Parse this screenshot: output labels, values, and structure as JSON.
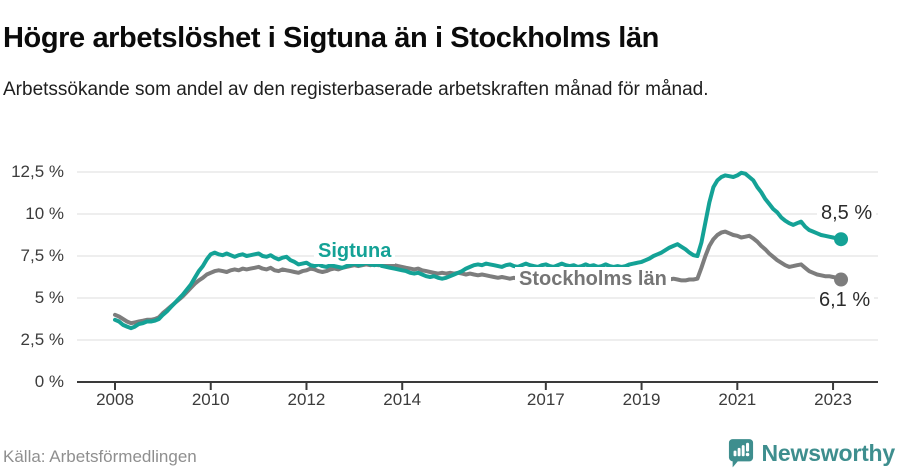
{
  "header": {
    "title": "Högre arbetslöshet i Sigtuna än i Stockholms län",
    "subtitle": "Arbetssökande som andel av den registerbaserade arbetskraften månad för månad."
  },
  "chart_data": {
    "type": "line",
    "title": "Högre arbetslöshet i Sigtuna än i Stockholms län",
    "subtitle": "Arbetssökande som andel av den registerbaserade arbetskraften månad för månad.",
    "unit": "%",
    "grid": true,
    "x_axis": {
      "range": [
        2008,
        2023.3
      ],
      "ticks": [
        {
          "label": "2008",
          "year": 2008
        },
        {
          "label": "2010",
          "year": 2010
        },
        {
          "label": "2012",
          "year": 2012
        },
        {
          "label": "2014",
          "year": 2014
        },
        {
          "label": "2017",
          "year": 2017
        },
        {
          "label": "2019",
          "year": 2019
        },
        {
          "label": "2021",
          "year": 2021
        },
        {
          "label": "2023",
          "year": 2023
        }
      ]
    },
    "y_axis": {
      "range": [
        0,
        12.5
      ],
      "ticks": [
        {
          "label": "0 %",
          "value": 0
        },
        {
          "label": "2,5 %",
          "value": 2.5
        },
        {
          "label": "5 %",
          "value": 5
        },
        {
          "label": "7,5 %",
          "value": 7.5
        },
        {
          "label": "10 %",
          "value": 10
        },
        {
          "label": "12,5 %",
          "value": 12.5
        }
      ]
    },
    "series": [
      {
        "id": "sigtuna",
        "name": "Sigtuna",
        "color": "#14a296",
        "end_label": "8,5 %",
        "end_value": 8.5,
        "start_year": 2008,
        "step_months": 1,
        "values": [
          3.7,
          3.6,
          3.4,
          3.3,
          3.2,
          3.3,
          3.45,
          3.5,
          3.6,
          3.6,
          3.65,
          3.75,
          4.0,
          4.2,
          4.45,
          4.7,
          4.95,
          5.2,
          5.5,
          5.8,
          6.2,
          6.6,
          6.9,
          7.3,
          7.6,
          7.7,
          7.6,
          7.55,
          7.65,
          7.55,
          7.45,
          7.55,
          7.6,
          7.5,
          7.55,
          7.6,
          7.65,
          7.5,
          7.45,
          7.55,
          7.4,
          7.3,
          7.4,
          7.45,
          7.25,
          7.15,
          7.0,
          7.05,
          7.1,
          6.95,
          6.9,
          7.0,
          6.9,
          6.85,
          6.95,
          6.9,
          6.85,
          6.8,
          6.9,
          6.95,
          7.05,
          6.95,
          7.0,
          7.1,
          7.0,
          6.95,
          7.0,
          6.9,
          6.85,
          6.8,
          6.75,
          6.7,
          6.65,
          6.6,
          6.5,
          6.45,
          6.5,
          6.4,
          6.3,
          6.25,
          6.3,
          6.2,
          6.15,
          6.2,
          6.3,
          6.4,
          6.5,
          6.6,
          6.75,
          6.85,
          6.95,
          7.0,
          6.95,
          7.05,
          7.0,
          6.95,
          6.9,
          6.85,
          6.95,
          7.0,
          6.9,
          6.85,
          6.95,
          7.05,
          6.95,
          6.9,
          6.85,
          6.95,
          7.0,
          6.9,
          6.85,
          6.95,
          7.05,
          6.95,
          6.9,
          6.95,
          6.85,
          6.9,
          7.0,
          6.9,
          6.95,
          6.85,
          6.9,
          7.0,
          6.9,
          6.85,
          6.9,
          6.85,
          6.9,
          7.0,
          7.05,
          7.1,
          7.15,
          7.25,
          7.35,
          7.5,
          7.6,
          7.7,
          7.85,
          8.0,
          8.1,
          8.2,
          8.05,
          7.9,
          7.7,
          7.55,
          7.5,
          8.3,
          9.5,
          10.7,
          11.6,
          12.0,
          12.2,
          12.3,
          12.25,
          12.2,
          12.3,
          12.45,
          12.4,
          12.2,
          12.0,
          11.6,
          11.3,
          10.9,
          10.6,
          10.3,
          10.1,
          9.8,
          9.6,
          9.45,
          9.35,
          9.45,
          9.55,
          9.25,
          9.05,
          8.95,
          8.85,
          8.75,
          8.7,
          8.65,
          8.6,
          8.55,
          8.5
        ]
      },
      {
        "id": "stockholms-lan",
        "name": "Stockholms län",
        "color": "#7d7d7d",
        "end_label": "6,1 %",
        "end_value": 6.1,
        "start_year": 2008,
        "step_months": 1,
        "values": [
          4.0,
          3.9,
          3.75,
          3.6,
          3.5,
          3.55,
          3.6,
          3.65,
          3.7,
          3.7,
          3.75,
          3.85,
          4.1,
          4.3,
          4.5,
          4.7,
          4.9,
          5.1,
          5.35,
          5.6,
          5.85,
          6.05,
          6.2,
          6.4,
          6.5,
          6.6,
          6.65,
          6.6,
          6.55,
          6.65,
          6.7,
          6.65,
          6.75,
          6.7,
          6.75,
          6.8,
          6.85,
          6.75,
          6.7,
          6.8,
          6.65,
          6.6,
          6.7,
          6.65,
          6.6,
          6.55,
          6.5,
          6.6,
          6.65,
          6.75,
          6.7,
          6.6,
          6.55,
          6.6,
          6.7,
          6.75,
          6.7,
          6.8,
          6.85,
          6.9,
          6.95,
          6.9,
          6.95,
          7.0,
          6.95,
          7.0,
          6.95,
          7.0,
          6.95,
          6.9,
          6.95,
          6.9,
          6.85,
          6.8,
          6.75,
          6.7,
          6.75,
          6.65,
          6.6,
          6.55,
          6.5,
          6.45,
          6.5,
          6.45,
          6.5,
          6.45,
          6.5,
          6.45,
          6.4,
          6.45,
          6.4,
          6.35,
          6.4,
          6.35,
          6.3,
          6.25,
          6.2,
          6.25,
          6.2,
          6.15,
          6.2,
          6.15,
          6.1,
          6.15,
          6.1,
          6.05,
          6.1,
          6.05,
          6.1,
          6.05,
          6.0,
          6.05,
          6.0,
          5.95,
          6.0,
          5.95,
          6.0,
          5.95,
          6.0,
          5.95,
          6.0,
          5.95,
          6.0,
          6.05,
          6.0,
          5.95,
          6.0,
          6.05,
          6.0,
          6.05,
          6.1,
          6.05,
          6.1,
          6.05,
          6.1,
          6.1,
          6.15,
          6.1,
          6.15,
          6.1,
          6.15,
          6.1,
          6.05,
          6.05,
          6.1,
          6.1,
          6.15,
          6.8,
          7.5,
          8.1,
          8.5,
          8.75,
          8.9,
          8.95,
          8.85,
          8.75,
          8.7,
          8.6,
          8.65,
          8.7,
          8.55,
          8.35,
          8.1,
          7.9,
          7.65,
          7.45,
          7.25,
          7.1,
          6.95,
          6.85,
          6.9,
          6.95,
          7.0,
          6.8,
          6.6,
          6.5,
          6.4,
          6.35,
          6.3,
          6.3,
          6.25,
          6.2,
          6.1
        ]
      }
    ],
    "legend_position": "inline-labels",
    "source": "Källa: Arbetsförmedlingen"
  },
  "footer": {
    "source": "Källa: Arbetsförmedlingen",
    "brand": "Newsworthy"
  },
  "colors": {
    "accent": "#14a296",
    "gray_series": "#7d7d7d",
    "brand": "#3e8e8e",
    "grid": "#e3e3e3",
    "axis": "#3a3a3a",
    "title_text": "#0b0b0b",
    "muted_text": "#8f8f8f"
  }
}
